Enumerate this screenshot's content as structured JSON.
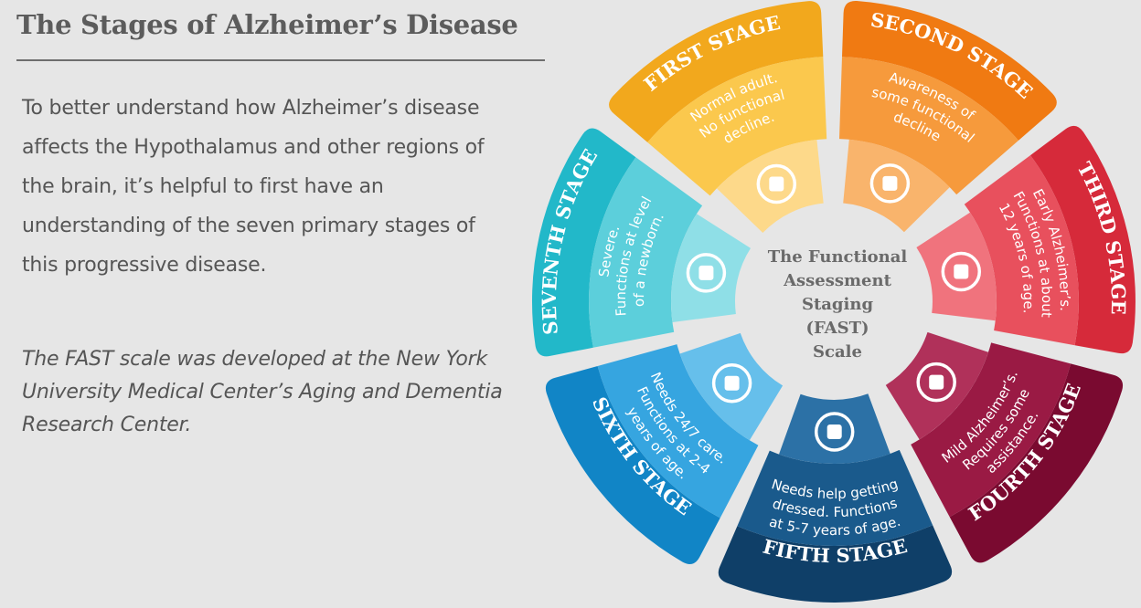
{
  "header": {
    "title": "The Stages of Alzheimer’s Disease"
  },
  "intro_text": "To better understand how Alzheimer’s disease affects the Hypothalamus and other regions of the brain, it’s helpful to first have an understanding of the seven primary stages of this progressive disease.",
  "credit_text": "The FAST scale was developed at the New York University Medical Center’s Aging and Dementia Research Center.",
  "wheel": {
    "center_lines": [
      "The Functional",
      "Assessment",
      "Staging",
      "(FAST)",
      "Scale"
    ],
    "stages": [
      {
        "title": "FIRST STAGE",
        "desc": [
          "Normal adult.",
          "No functional",
          "decline."
        ],
        "icon": "puzzle-icon",
        "outer": "#f2a81d",
        "inner": "#fbc84d",
        "hub": "#fdd98a"
      },
      {
        "title": "SECOND STAGE",
        "desc": [
          "Awareness of",
          "some functional",
          "decline"
        ],
        "icon": "lightbulb-icon",
        "outer": "#f07a12",
        "inner": "#f69a3c",
        "hub": "#f9b46c"
      },
      {
        "title": "THIRD STAGE",
        "desc": [
          "Early Alzheimer’s.",
          "Functions at about",
          "12 years of age."
        ],
        "icon": "thought-bubble-icon",
        "outer": "#d62a3a",
        "inner": "#e8505d",
        "hub": "#f0737d"
      },
      {
        "title": "FOURTH STAGE",
        "desc": [
          "Mild Alzheimer’s.",
          "Requires some",
          "assistance."
        ],
        "icon": "heart-hand-icon",
        "outer": "#7a0a30",
        "inner": "#9a1a44",
        "hub": "#b0315a"
      },
      {
        "title": "FIFTH STAGE",
        "desc": [
          "Needs help getting",
          "dressed. Functions",
          "at 5-7 years of age."
        ],
        "icon": "shirt-icon",
        "outer": "#0f3f68",
        "inner": "#1a5a8c",
        "hub": "#2c71a6"
      },
      {
        "title": "SIXTH STAGE",
        "desc": [
          "Needs 24/7 care.",
          "Functions at 2-4",
          "years of age."
        ],
        "icon": "stethoscope-icon",
        "outer": "#1185c6",
        "inner": "#36a5e0",
        "hub": "#66bfeb"
      },
      {
        "title": "SEVENTH STAGE",
        "desc": [
          "Severe.",
          "Functions at level",
          "of a newborn."
        ],
        "icon": "wheelchair-icon",
        "outer": "#22b8c9",
        "inner": "#5ccfdb",
        "hub": "#8fdfe7"
      }
    ]
  }
}
